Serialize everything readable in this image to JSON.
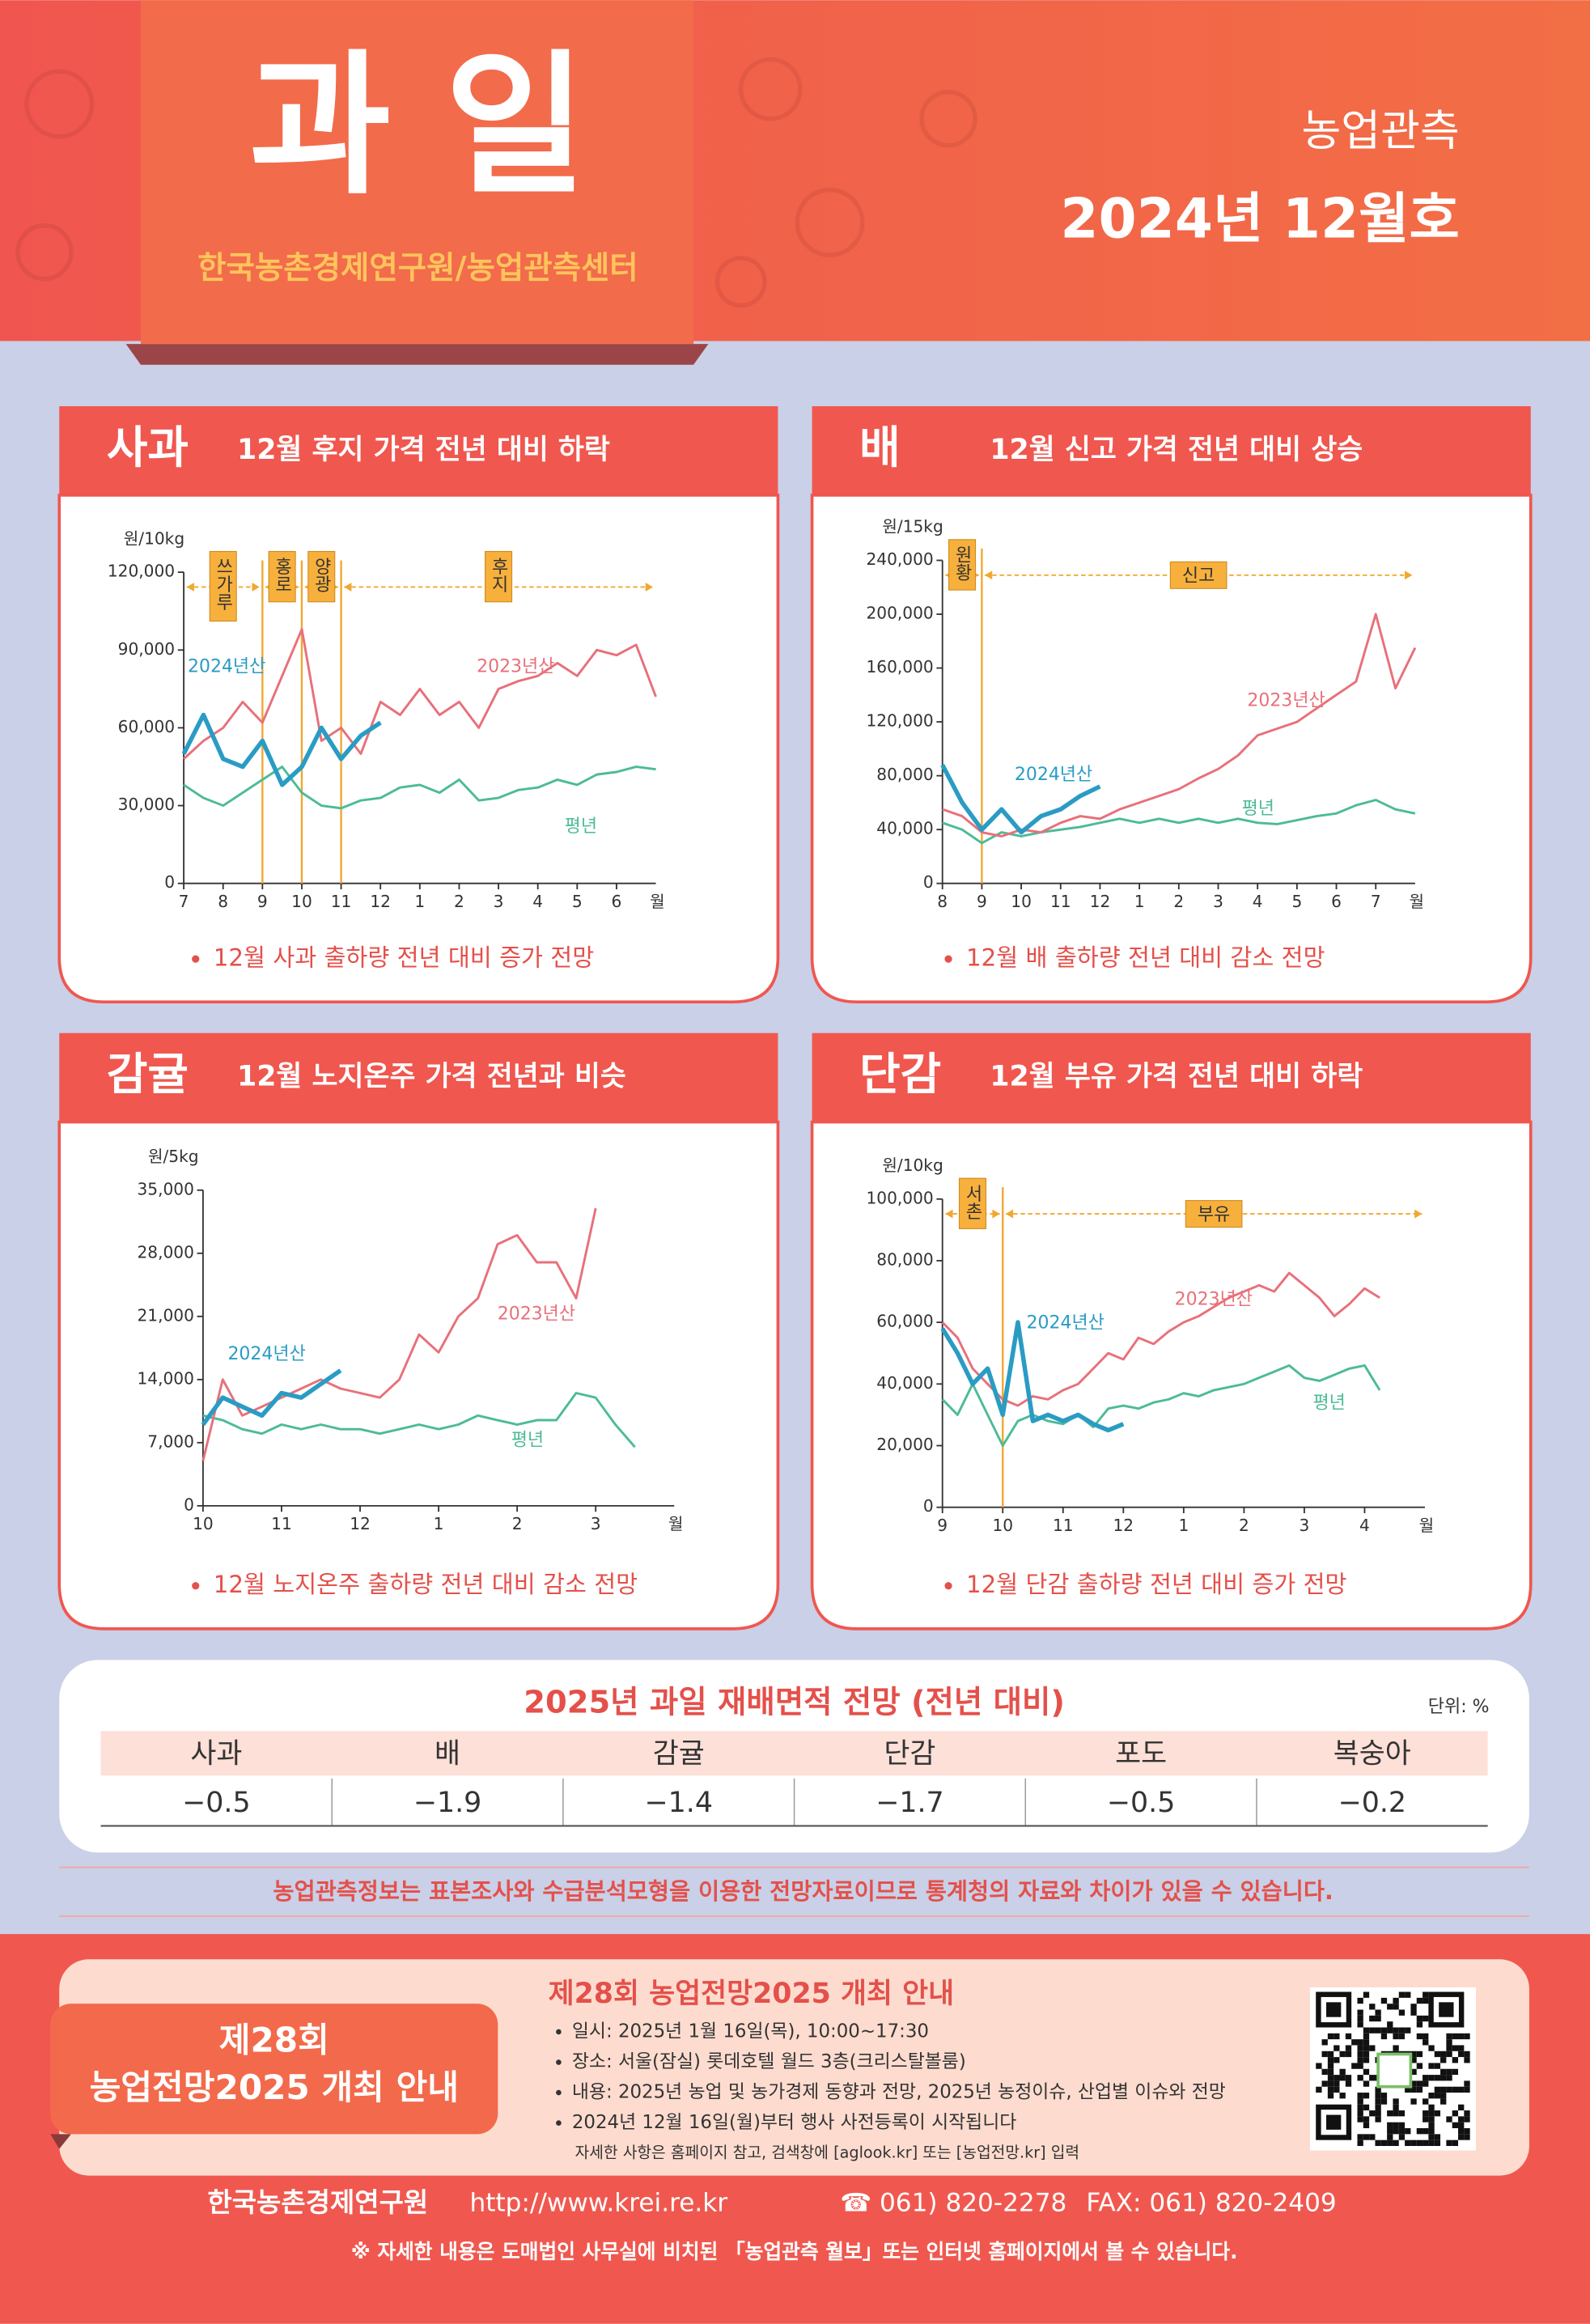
{
  "header": {
    "title": "과 일",
    "subtitle": "한국농촌경제연구원/농업관측센터",
    "series_name": "농업관측",
    "issue": "2024년 12월호"
  },
  "chart_data": [
    {
      "type": "line",
      "title": "사과",
      "subtitle": "12월 후지 가격 전년 대비 하락",
      "note": "12월 사과 출하량 전년 대비 증가 전망",
      "y_label": "원/10kg",
      "x_unit": "월",
      "x": [
        0,
        0.5,
        1,
        1.5,
        2,
        2.5,
        3,
        3.5,
        4,
        4.5,
        5,
        5.5,
        6,
        6.5,
        7,
        7.5,
        8,
        8.5,
        9,
        9.5,
        10,
        10.5,
        11,
        11.5,
        12
      ],
      "xlim": [
        0,
        12
      ],
      "xticks": [
        {
          "value": 0,
          "label": "7"
        },
        {
          "value": 1,
          "label": "8"
        },
        {
          "value": 2,
          "label": "9"
        },
        {
          "value": 3,
          "label": "10"
        },
        {
          "value": 4,
          "label": "11"
        },
        {
          "value": 5,
          "label": "12"
        },
        {
          "value": 6,
          "label": "1"
        },
        {
          "value": 7,
          "label": "2"
        },
        {
          "value": 8,
          "label": "3"
        },
        {
          "value": 9,
          "label": "4"
        },
        {
          "value": 10,
          "label": "5"
        },
        {
          "value": 11,
          "label": "6"
        }
      ],
      "ylim": [
        0,
        120000
      ],
      "yticks": [
        0,
        {
          "value": 30000,
          "label": "30,000"
        },
        {
          "value": 60000,
          "label": "60,000"
        },
        {
          "value": 90000,
          "label": "90,000"
        },
        {
          "value": 120000,
          "label": "120,000"
        }
      ],
      "periods": [
        {
          "label": "쓰가루",
          "start": 0,
          "end": 2
        },
        {
          "label": "홍로",
          "start": 2,
          "end": 3
        },
        {
          "label": "양광",
          "start": 3,
          "end": 4
        },
        {
          "label": "후지",
          "start": 4,
          "end": 12
        }
      ],
      "series": [
        {
          "name": "2024년산",
          "color": "#2a9cc4",
          "values": [
            50000,
            65000,
            48000,
            45000,
            55000,
            38000,
            45000,
            60000,
            48000,
            57000,
            62000,
            null,
            null,
            null,
            null,
            null,
            null,
            null,
            null,
            null,
            null,
            null,
            null,
            null,
            null
          ]
        },
        {
          "name": "2023년산",
          "color": "#e8707a",
          "values": [
            48000,
            55000,
            60000,
            70000,
            62000,
            80000,
            98000,
            55000,
            60000,
            50000,
            70000,
            65000,
            75000,
            65000,
            70000,
            60000,
            75000,
            78000,
            80000,
            85000,
            80000,
            90000,
            88000,
            92000,
            72000
          ]
        },
        {
          "name": "평년",
          "color": "#4dbb98",
          "values": [
            38000,
            33000,
            30000,
            35000,
            40000,
            45000,
            35000,
            30000,
            29000,
            32000,
            33000,
            37000,
            38000,
            35000,
            40000,
            32000,
            33000,
            36000,
            37000,
            40000,
            38000,
            42000,
            43000,
            45000,
            44000
          ]
        }
      ]
    },
    {
      "type": "line",
      "title": "배",
      "subtitle": "12월 신고 가격 전년 대비 상승",
      "note": "12월 배 출하량 전년 대비 감소 전망",
      "y_label": "원/15kg",
      "x_unit": "월",
      "x": [
        0,
        0.5,
        1,
        1.5,
        2,
        2.5,
        3,
        3.5,
        4,
        4.5,
        5,
        5.5,
        6,
        6.5,
        7,
        7.5,
        8,
        8.5,
        9,
        9.5,
        10,
        10.5,
        11,
        11.5,
        12
      ],
      "xlim": [
        0,
        12
      ],
      "xticks": [
        {
          "value": 0,
          "label": "8"
        },
        {
          "value": 1,
          "label": "9"
        },
        {
          "value": 2,
          "label": "10"
        },
        {
          "value": 3,
          "label": "11"
        },
        {
          "value": 4,
          "label": "12"
        },
        {
          "value": 5,
          "label": "1"
        },
        {
          "value": 6,
          "label": "2"
        },
        {
          "value": 7,
          "label": "3"
        },
        {
          "value": 8,
          "label": "4"
        },
        {
          "value": 9,
          "label": "5"
        },
        {
          "value": 10,
          "label": "6"
        },
        {
          "value": 11,
          "label": "7"
        }
      ],
      "ylim": [
        0,
        240000
      ],
      "yticks": [
        0,
        {
          "value": 40000,
          "label": "40,000"
        },
        {
          "value": 80000,
          "label": "80,000"
        },
        {
          "value": 120000,
          "label": "120,000"
        },
        {
          "value": 160000,
          "label": "160,000"
        },
        {
          "value": 200000,
          "label": "200,000"
        },
        {
          "value": 240000,
          "label": "240,000"
        }
      ],
      "periods": [
        {
          "label": "원황",
          "start": 0,
          "end": 1
        },
        {
          "label": "신고",
          "start": 1,
          "end": 12
        }
      ],
      "series": [
        {
          "name": "2024년산",
          "color": "#2a9cc4",
          "values": [
            88000,
            60000,
            40000,
            55000,
            38000,
            50000,
            55000,
            65000,
            72000,
            null,
            null,
            null,
            null,
            null,
            null,
            null,
            null,
            null,
            null,
            null,
            null,
            null,
            null,
            null,
            null
          ]
        },
        {
          "name": "2023년산",
          "color": "#e8707a",
          "values": [
            55000,
            50000,
            38000,
            35000,
            40000,
            38000,
            45000,
            50000,
            48000,
            55000,
            60000,
            65000,
            70000,
            78000,
            85000,
            95000,
            110000,
            115000,
            120000,
            130000,
            140000,
            150000,
            200000,
            145000,
            175000
          ]
        },
        {
          "name": "평년",
          "color": "#4dbb98",
          "values": [
            45000,
            40000,
            30000,
            38000,
            35000,
            38000,
            40000,
            42000,
            45000,
            48000,
            45000,
            48000,
            45000,
            48000,
            45000,
            48000,
            45000,
            44000,
            47000,
            50000,
            52000,
            58000,
            62000,
            55000,
            52000
          ]
        }
      ]
    },
    {
      "type": "line",
      "title": "감귤",
      "subtitle": "12월 노지온주 가격 전년과 비슷",
      "note": "12월 노지온주 출하량 전년 대비 감소 전망",
      "y_label": "원/5kg",
      "x_unit": "월",
      "x": [
        0,
        0.25,
        0.5,
        0.75,
        1,
        1.25,
        1.5,
        1.75,
        2,
        2.25,
        2.5,
        2.75,
        3,
        3.25,
        3.5,
        3.75,
        4,
        4.25,
        4.5,
        4.75,
        5,
        5.25,
        5.5
      ],
      "xlim": [
        0,
        6
      ],
      "xticks": [
        {
          "value": 0,
          "label": "10"
        },
        {
          "value": 1,
          "label": "11"
        },
        {
          "value": 2,
          "label": "12"
        },
        {
          "value": 3,
          "label": "1"
        },
        {
          "value": 4,
          "label": "2"
        },
        {
          "value": 5,
          "label": "3"
        }
      ],
      "ylim": [
        0,
        35000
      ],
      "yticks": [
        0,
        {
          "value": 7000,
          "label": "7,000"
        },
        {
          "value": 14000,
          "label": "14,000"
        },
        {
          "value": 21000,
          "label": "21,000"
        },
        {
          "value": 28000,
          "label": "28,000"
        },
        {
          "value": 35000,
          "label": "35,000"
        }
      ],
      "periods": [],
      "series": [
        {
          "name": "2024년산",
          "color": "#2a9cc4",
          "values": [
            9000,
            12000,
            11000,
            10000,
            12500,
            12000,
            13500,
            15000,
            null,
            null,
            null,
            null,
            null,
            null,
            null,
            null,
            null,
            null,
            null,
            null,
            null,
            null,
            null
          ]
        },
        {
          "name": "2023년산",
          "color": "#e8707a",
          "values": [
            5000,
            14000,
            10000,
            11000,
            12000,
            13000,
            14000,
            13000,
            12500,
            12000,
            14000,
            19000,
            17000,
            21000,
            23000,
            29000,
            30000,
            27000,
            27000,
            23000,
            33000,
            null,
            null
          ]
        },
        {
          "name": "평년",
          "color": "#4dbb98",
          "values": [
            10000,
            9500,
            8500,
            8000,
            9000,
            8500,
            9000,
            8500,
            8500,
            8000,
            8500,
            9000,
            8500,
            9000,
            10000,
            9500,
            9000,
            9500,
            9500,
            12500,
            12000,
            9000,
            6500
          ]
        }
      ]
    },
    {
      "type": "line",
      "title": "단감",
      "subtitle": "12월 부유 가격 전년 대비 하락",
      "note": "12월 단감 출하량 전년 대비 증가 전망",
      "y_label": "원/10kg",
      "x_unit": "월",
      "x": [
        0,
        0.25,
        0.5,
        0.75,
        1,
        1.25,
        1.5,
        1.75,
        2,
        2.25,
        2.5,
        2.75,
        3,
        3.25,
        3.5,
        3.75,
        4,
        4.25,
        4.5,
        4.75,
        5,
        5.25,
        5.5,
        5.75,
        6,
        6.25,
        6.5,
        6.75,
        7,
        7.25,
        7.5
      ],
      "xlim": [
        0,
        8
      ],
      "xticks": [
        {
          "value": 0,
          "label": "9"
        },
        {
          "value": 1,
          "label": "10"
        },
        {
          "value": 2,
          "label": "11"
        },
        {
          "value": 3,
          "label": "12"
        },
        {
          "value": 4,
          "label": "1"
        },
        {
          "value": 5,
          "label": "2"
        },
        {
          "value": 6,
          "label": "3"
        },
        {
          "value": 7,
          "label": "4"
        }
      ],
      "ylim": [
        0,
        100000
      ],
      "yticks": [
        0,
        {
          "value": 20000,
          "label": "20,000"
        },
        {
          "value": 40000,
          "label": "40,000"
        },
        {
          "value": 60000,
          "label": "60,000"
        },
        {
          "value": 80000,
          "label": "80,000"
        },
        {
          "value": 100000,
          "label": "100,000"
        }
      ],
      "periods": [
        {
          "label": "서촌",
          "start": 0,
          "end": 1
        },
        {
          "label": "부유",
          "start": 1,
          "end": 8
        }
      ],
      "series": [
        {
          "name": "2024년산",
          "color": "#2a9cc4",
          "values": [
            58000,
            50000,
            40000,
            45000,
            30000,
            60000,
            28000,
            30000,
            28000,
            30000,
            27000,
            25000,
            27000,
            null,
            null,
            null,
            null,
            null,
            null,
            null,
            null,
            null,
            null,
            null,
            null,
            null,
            null,
            null,
            null,
            null,
            null
          ]
        },
        {
          "name": "2023년산",
          "color": "#e8707a",
          "values": [
            60000,
            55000,
            45000,
            40000,
            35000,
            33000,
            36000,
            35000,
            38000,
            40000,
            45000,
            50000,
            48000,
            55000,
            53000,
            57000,
            60000,
            62000,
            65000,
            68000,
            70000,
            72000,
            70000,
            76000,
            72000,
            68000,
            62000,
            66000,
            71000,
            68000,
            null
          ]
        },
        {
          "name": "평년",
          "color": "#4dbb98",
          "values": [
            35000,
            30000,
            40000,
            30000,
            20000,
            28000,
            30000,
            28000,
            27000,
            30000,
            26000,
            32000,
            33000,
            32000,
            34000,
            35000,
            37000,
            36000,
            38000,
            39000,
            40000,
            42000,
            44000,
            46000,
            42000,
            41000,
            43000,
            45000,
            46000,
            38000,
            null
          ]
        }
      ]
    }
  ],
  "table": {
    "title": "2025년 과일 재배면적 전망 (전년 대비)",
    "unit": "단위: %",
    "headers": [
      "사과",
      "배",
      "감귤",
      "단감",
      "포도",
      "복숭아"
    ],
    "values": [
      "−0.5",
      "−1.9",
      "−1.4",
      "−1.7",
      "−0.5",
      "−0.2"
    ]
  },
  "notice": "농업관측정보는 표본조사와 수급분석모형을 이용한 전망자료이므로 통계청의 자료와 차이가 있을 수 있습니다.",
  "event": {
    "badge": [
      "제28회",
      "농업전망2025 개최 안내"
    ],
    "title": "제28회 농업전망2025 개최 안내",
    "items": [
      "일시: 2025년 1월 16일(목), 10:00~17:30",
      "장소: 서울(잠실) 롯데호텔 월드 3층(크리스탈볼룸)",
      "내용: 2025년 농업 및 농가경제 동향과 전망, 2025년 농정이슈, 산업별 이슈와 전망",
      "2024년 12월 16일(월)부터 행사 사전등록이 시작됩니다"
    ],
    "detail": "자세한 사항은 홈페이지 참고, 검색창에 [aglook.kr] 또는 [농업전망.kr] 입력"
  },
  "footer": {
    "org": "한국농촌경제연구원",
    "url": "http://www.krei.re.kr",
    "phone": "☎ 061) 820-2278",
    "fax": "FAX: 061) 820-2409",
    "note": "※ 자세한 내용은 도매법인 사무실에 비치된 「농업관측 월보」또는 인터넷 홈페이지에서 볼 수 있습니다."
  }
}
